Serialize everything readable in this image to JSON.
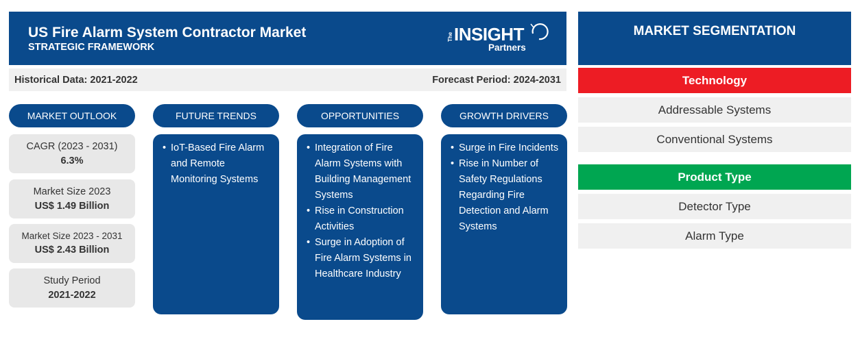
{
  "header": {
    "title": "US Fire Alarm System Contractor Market",
    "subtitle": "STRATEGIC FRAMEWORK",
    "logo": {
      "the": "The",
      "insight": "INSIGHT",
      "partners": "Partners"
    }
  },
  "infobar": {
    "historical": "Historical Data: 2021-2022",
    "forecast": "Forecast Period: 2024-2031"
  },
  "columns": {
    "outlook": "MARKET OUTLOOK",
    "trends": "FUTURE TRENDS",
    "opportunities": "OPPORTUNITIES",
    "drivers": "GROWTH DRIVERS"
  },
  "outlook": [
    {
      "label": "CAGR (2023 - 2031)",
      "value": "6.3%"
    },
    {
      "label": "Market Size 2023",
      "value": "US$ 1.49 Billion"
    },
    {
      "label": "Market Size 2023 - 2031",
      "value": "US$ 2.43 Billion"
    },
    {
      "label": "Study Period",
      "value": "2021-2022"
    }
  ],
  "trends": [
    "IoT-Based Fire Alarm and Remote Monitoring Systems"
  ],
  "opportunities": [
    "Integration of Fire Alarm Systems with Building Management Systems",
    "Rise in Construction Activities",
    "Surge in Adoption of Fire Alarm Systems in Healthcare Industry"
  ],
  "drivers": [
    "Surge in Fire Incidents",
    "Rise in Number of Safety Regulations Regarding Fire Detection and Alarm Systems"
  ],
  "segmentation": {
    "title": "MARKET SEGMENTATION",
    "groups": [
      {
        "name": "Technology",
        "color": "#ed1c24",
        "items": [
          "Addressable Systems",
          "Conventional Systems"
        ]
      },
      {
        "name": "Product Type",
        "color": "#00a651",
        "items": [
          "Detector Type",
          "Alarm Type"
        ]
      }
    ]
  },
  "colors": {
    "primary": "#0a4a8c",
    "technology": "#ed1c24",
    "product": "#00a651",
    "panel": "#f0f0f0"
  }
}
